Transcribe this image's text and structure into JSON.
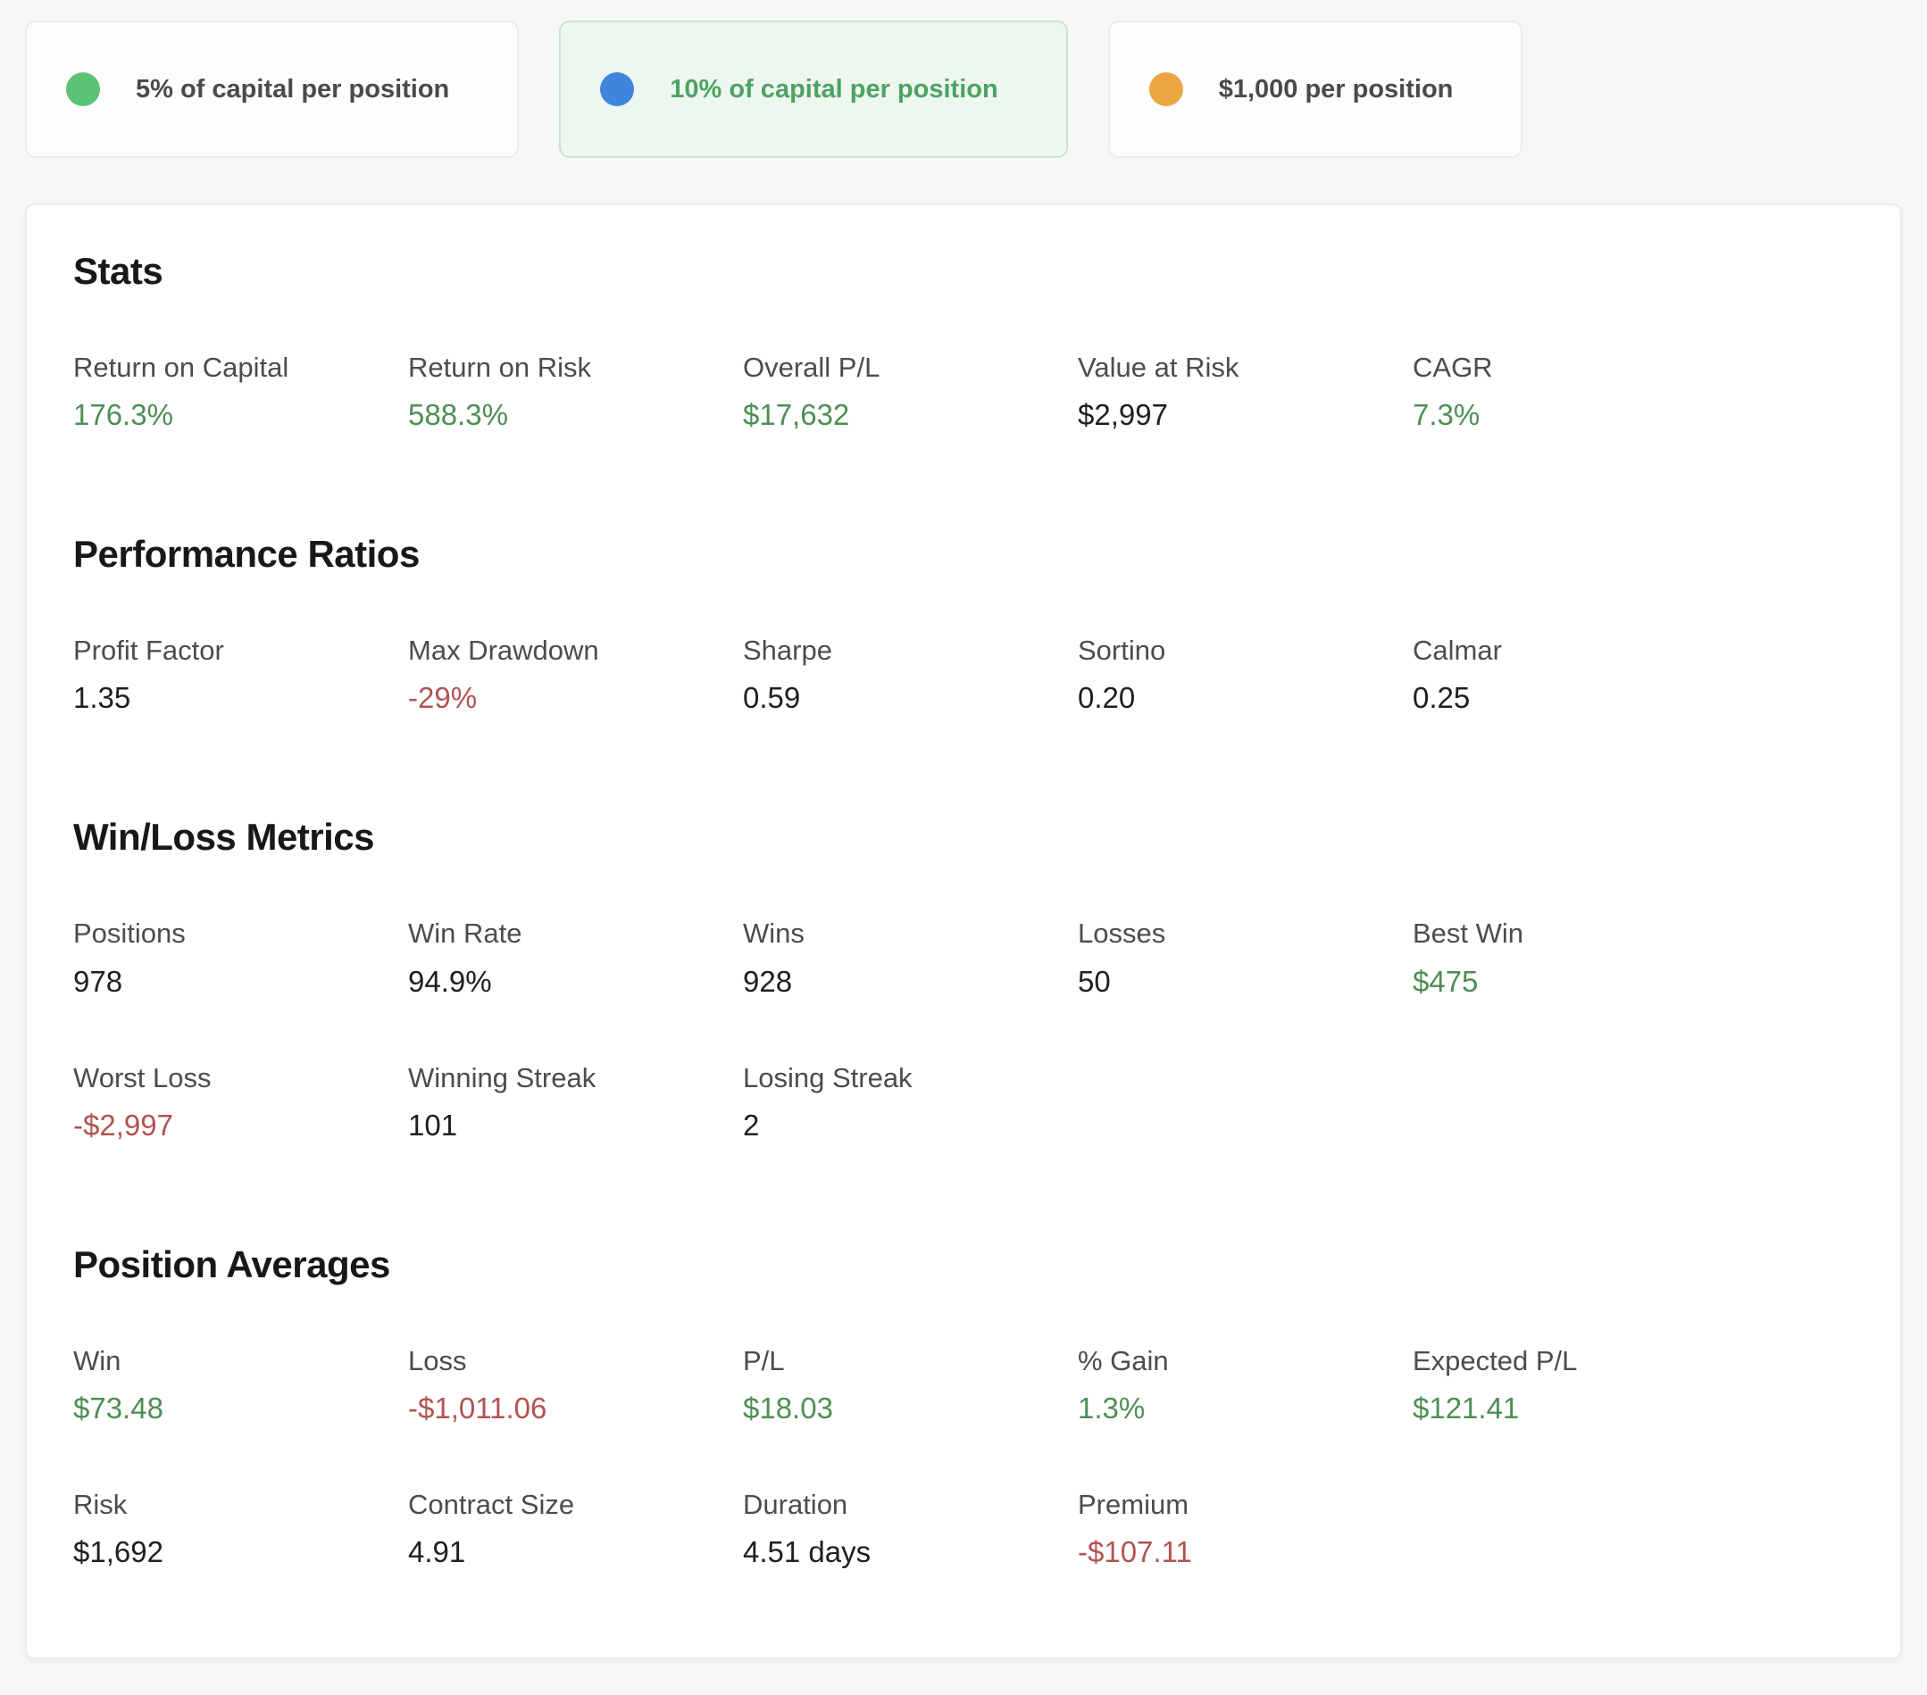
{
  "colors": {
    "positive_value": "#4e8e54",
    "negative_value": "#b25351",
    "active_tab_text": "#4da263",
    "active_tab_bg": "#edf7ef",
    "active_tab_border": "#c7e5cd",
    "green_dot": "#5cc374",
    "blue_dot": "#3d85dd",
    "orange_dot": "#eba640"
  },
  "tabs": [
    {
      "id": "5-percent-of-capital",
      "label": "5% of capital per position",
      "dot_icon": "green-dot-icon",
      "dot_color": "#5cc374",
      "active": false
    },
    {
      "id": "10-percent-of-capital",
      "label": "10% of capital per position",
      "dot_icon": "blue-dot-icon",
      "dot_color": "#3d85dd",
      "active": true
    },
    {
      "id": "1000-dollars",
      "label": "$1,000 per position",
      "dot_icon": "orange-dot-icon",
      "dot_color": "#eba640",
      "active": false
    }
  ],
  "sections": [
    {
      "title": "Stats",
      "metrics": [
        {
          "label": "Return on Capital",
          "value": "176.3%",
          "tone": "positive"
        },
        {
          "label": "Return on Risk",
          "value": "588.3%",
          "tone": "positive"
        },
        {
          "label": "Overall P/L",
          "value": "$17,632",
          "tone": "positive"
        },
        {
          "label": "Value at Risk",
          "value": "$2,997",
          "tone": "neutral"
        },
        {
          "label": "CAGR",
          "value": "7.3%",
          "tone": "positive"
        }
      ]
    },
    {
      "title": "Performance Ratios",
      "metrics": [
        {
          "label": "Profit Factor",
          "value": "1.35",
          "tone": "neutral"
        },
        {
          "label": "Max Drawdown",
          "value": "-29%",
          "tone": "negative"
        },
        {
          "label": "Sharpe",
          "value": "0.59",
          "tone": "neutral"
        },
        {
          "label": "Sortino",
          "value": "0.20",
          "tone": "neutral"
        },
        {
          "label": "Calmar",
          "value": "0.25",
          "tone": "neutral"
        }
      ]
    },
    {
      "title": "Win/Loss Metrics",
      "metrics": [
        {
          "label": "Positions",
          "value": "978",
          "tone": "neutral"
        },
        {
          "label": "Win Rate",
          "value": "94.9%",
          "tone": "neutral"
        },
        {
          "label": "Wins",
          "value": "928",
          "tone": "neutral"
        },
        {
          "label": "Losses",
          "value": "50",
          "tone": "neutral"
        },
        {
          "label": "Best Win",
          "value": "$475",
          "tone": "positive"
        },
        {
          "label": "Worst Loss",
          "value": "-$2,997",
          "tone": "negative"
        },
        {
          "label": "Winning Streak",
          "value": "101",
          "tone": "neutral"
        },
        {
          "label": "Losing Streak",
          "value": "2",
          "tone": "neutral"
        }
      ]
    },
    {
      "title": "Position Averages",
      "metrics": [
        {
          "label": "Win",
          "value": "$73.48",
          "tone": "positive"
        },
        {
          "label": "Loss",
          "value": "-$1,011.06",
          "tone": "negative"
        },
        {
          "label": "P/L",
          "value": "$18.03",
          "tone": "positive"
        },
        {
          "label": "% Gain",
          "value": "1.3%",
          "tone": "positive"
        },
        {
          "label": "Expected P/L",
          "value": "$121.41",
          "tone": "positive"
        },
        {
          "label": "Risk",
          "value": "$1,692",
          "tone": "neutral"
        },
        {
          "label": "Contract Size",
          "value": "4.91",
          "tone": "neutral"
        },
        {
          "label": "Duration",
          "value": "4.51 days",
          "tone": "neutral"
        },
        {
          "label": "Premium",
          "value": "-$107.11",
          "tone": "negative"
        }
      ]
    }
  ]
}
